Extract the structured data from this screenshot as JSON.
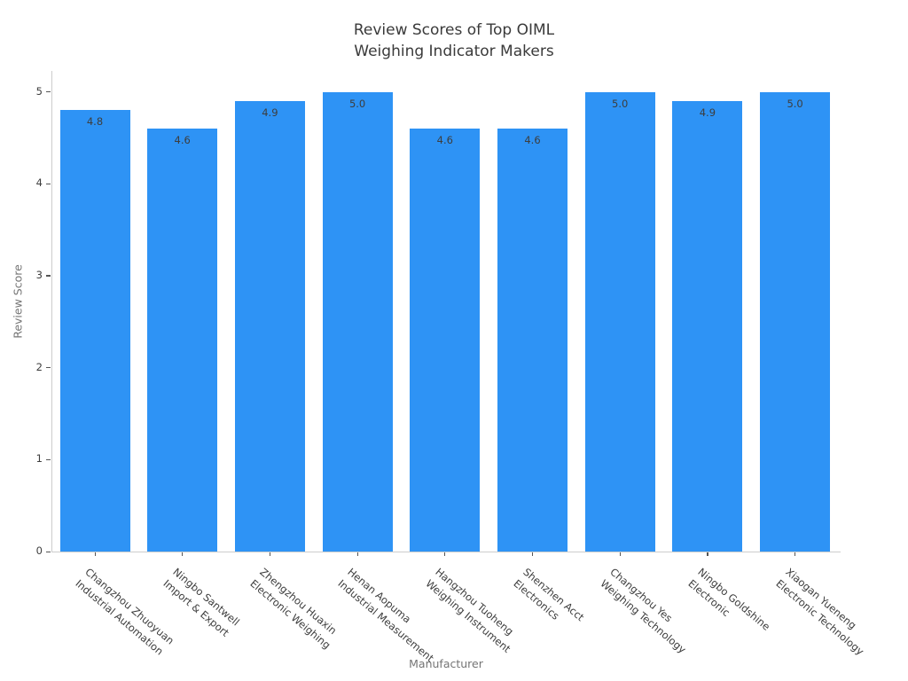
{
  "chart_data": {
    "type": "bar",
    "title": "Review Scores of Top OIML\nWeighing Indicator Makers",
    "xlabel": "Manufacturer",
    "ylabel": "Review Score",
    "categories": [
      "Changzhou Zhuoyuan\nIndustrial Automation",
      "Ningbo Santwell\nImport & Export",
      "Zhengzhou Huaxin\nElectronic Weighing",
      "Henan Aopuma\nIndustrial Measurement",
      "Hangzhou Tuoheng\nWeighing Instrument",
      "Shenzhen Acct\nElectronics",
      "Changzhou Yes\nWeighing Technology",
      "Ningbo Goldshine\nElectronic",
      "Xiaogan Yueneng\nElectronic Technology"
    ],
    "values": [
      4.8,
      4.6,
      4.9,
      5.0,
      4.6,
      4.6,
      5.0,
      4.9,
      5.0
    ],
    "value_labels": [
      "4.8",
      "4.6",
      "4.9",
      "5.0",
      "4.6",
      "4.6",
      "5.0",
      "4.9",
      "5.0"
    ],
    "yticks": [
      "0",
      "1",
      "2",
      "3",
      "4",
      "5"
    ],
    "ylim": [
      0,
      5.2
    ],
    "grid": false,
    "legend": "none",
    "bar_color": "#2e93f5",
    "orientation": "vertical"
  }
}
